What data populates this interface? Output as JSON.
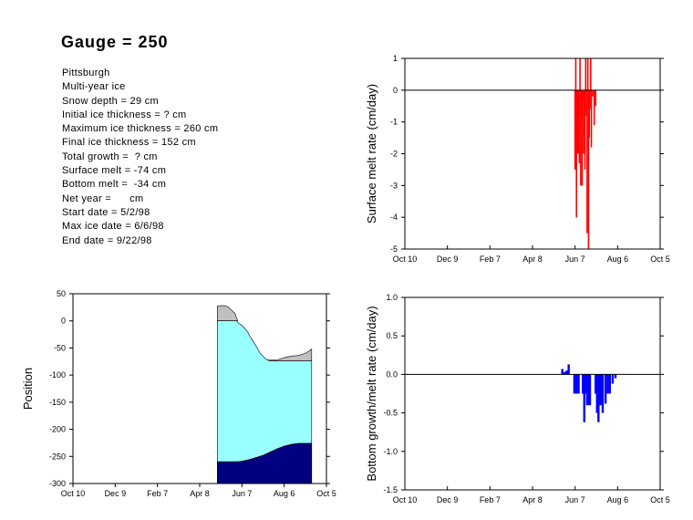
{
  "header": {
    "title": "Gauge = 250",
    "info_lines": [
      "Pittsburgh",
      "Multi-year ice",
      "Snow depth = 29 cm",
      "Initial ice thickness = ? cm",
      "Maximum ice thickness = 260 cm",
      "Final ice thickness = 152 cm",
      "Total growth =  ? cm",
      "Surface melt = -74 cm",
      "Bottom melt =  -34 cm",
      "Net year =      cm",
      "Start date = 5/2/98",
      "Max ice date = 6/6/98",
      "End date = 9/22/98"
    ]
  },
  "chart_data": [
    {
      "id": "surface",
      "type": "bar",
      "title": "",
      "xlabel": "",
      "ylabel": "Surface melt rate (cm/day)",
      "x_ticks": [
        "Oct 10",
        "Dec 9",
        "Feb 7",
        "Apr 8",
        "Jun 7",
        "Aug 6",
        "Oct 5"
      ],
      "y_ticks": [
        "1",
        "0",
        "-1",
        "-2",
        "-3",
        "-4",
        "-5"
      ],
      "xlim_days": [
        0,
        360
      ],
      "ylim": [
        -5,
        1
      ],
      "color": "#ff0000",
      "values": [
        {
          "x": 240,
          "y": -2.5
        },
        {
          "x": 241,
          "y": 1
        },
        {
          "x": 242,
          "y": -4.0
        },
        {
          "x": 243,
          "y": -0.4
        },
        {
          "x": 244,
          "y": -2.0
        },
        {
          "x": 245,
          "y": -1.0
        },
        {
          "x": 246,
          "y": -2.3
        },
        {
          "x": 247,
          "y": 1
        },
        {
          "x": 248,
          "y": -3.0
        },
        {
          "x": 249,
          "y": -0.8
        },
        {
          "x": 250,
          "y": -3.0
        },
        {
          "x": 251,
          "y": -0.3
        },
        {
          "x": 252,
          "y": -2.0
        },
        {
          "x": 253,
          "y": -1.4
        },
        {
          "x": 254,
          "y": -2.5
        },
        {
          "x": 255,
          "y": 1
        },
        {
          "x": 256,
          "y": -0.8
        },
        {
          "x": 257,
          "y": -4.5
        },
        {
          "x": 258,
          "y": 1
        },
        {
          "x": 259,
          "y": -5.0
        },
        {
          "x": 260,
          "y": -1.5
        },
        {
          "x": 261,
          "y": -0.6
        },
        {
          "x": 262,
          "y": 1
        },
        {
          "x": 263,
          "y": -1.8
        },
        {
          "x": 265,
          "y": -0.2
        },
        {
          "x": 267,
          "y": -1.1
        },
        {
          "x": 269,
          "y": -0.5
        }
      ]
    },
    {
      "id": "bottom",
      "type": "bar",
      "title": "",
      "xlabel": "",
      "ylabel": "Bottom growth/melt rate (cm/day)",
      "x_ticks": [
        "Oct 10",
        "Dec 9",
        "Feb 7",
        "Apr 8",
        "Jun 7",
        "Aug 6",
        "Oct 5"
      ],
      "y_ticks": [
        "1.0",
        "0.5",
        "0.0",
        "-0.5",
        "-1.0",
        "-1.5"
      ],
      "xlim_days": [
        0,
        360
      ],
      "ylim": [
        -1.5,
        1.0
      ],
      "color": "#0000ff",
      "values": [
        {
          "x": 222,
          "y": 0.07
        },
        {
          "x": 225,
          "y": 0.03
        },
        {
          "x": 228,
          "y": 0.05
        },
        {
          "x": 231,
          "y": 0.13
        },
        {
          "x": 239,
          "y": -0.25
        },
        {
          "x": 242,
          "y": -0.25
        },
        {
          "x": 245,
          "y": -0.25
        },
        {
          "x": 251,
          "y": -0.25
        },
        {
          "x": 253,
          "y": -0.62
        },
        {
          "x": 255,
          "y": -0.25
        },
        {
          "x": 257,
          "y": -0.4
        },
        {
          "x": 259,
          "y": -0.4
        },
        {
          "x": 261,
          "y": -0.4
        },
        {
          "x": 269,
          "y": -0.25
        },
        {
          "x": 271,
          "y": -0.5
        },
        {
          "x": 273,
          "y": -0.62
        },
        {
          "x": 275,
          "y": -0.4
        },
        {
          "x": 277,
          "y": -0.4
        },
        {
          "x": 279,
          "y": -0.5
        },
        {
          "x": 283,
          "y": -0.38
        },
        {
          "x": 286,
          "y": -0.25
        },
        {
          "x": 289,
          "y": -0.25
        },
        {
          "x": 293,
          "y": -0.12
        },
        {
          "x": 297,
          "y": -0.05
        }
      ]
    },
    {
      "id": "position",
      "type": "area",
      "title": "",
      "xlabel": "",
      "ylabel": "Position",
      "x_ticks": [
        "Oct 10",
        "Dec 9",
        "Feb 7",
        "Apr 8",
        "Jun 7",
        "Aug 6",
        "Oct 5"
      ],
      "y_ticks": [
        "50",
        "0",
        "-50",
        "-100",
        "-150",
        "-200",
        "-250",
        "-300"
      ],
      "xlim_days": [
        0,
        360
      ],
      "ylim": [
        -300,
        50
      ],
      "colors": {
        "snow": "#c0c0c0",
        "ice": "#99ffff",
        "bottom": "#000080",
        "outline": "#000000"
      },
      "snow_top": [
        [
          205,
          27
        ],
        [
          210,
          28
        ],
        [
          215,
          28
        ],
        [
          220,
          26
        ],
        [
          225,
          20
        ],
        [
          230,
          14
        ],
        [
          234,
          0
        ]
      ],
      "ice_top": [
        [
          205,
          0
        ],
        [
          232,
          0
        ],
        [
          236,
          -5
        ],
        [
          240,
          -8
        ],
        [
          244,
          -14
        ],
        [
          248,
          -20
        ],
        [
          252,
          -30
        ],
        [
          256,
          -38
        ],
        [
          260,
          -46
        ],
        [
          264,
          -56
        ],
        [
          268,
          -63
        ],
        [
          272,
          -68
        ],
        [
          276,
          -72
        ],
        [
          280,
          -74
        ],
        [
          300,
          -74
        ],
        [
          320,
          -74
        ],
        [
          339,
          -74
        ]
      ],
      "snow_end_top": [
        [
          276,
          -72
        ],
        [
          290,
          -72
        ],
        [
          300,
          -68
        ],
        [
          310,
          -65
        ],
        [
          320,
          -64
        ],
        [
          330,
          -60
        ],
        [
          336,
          -55
        ],
        [
          339,
          -52
        ]
      ],
      "ice_bottom": [
        [
          205,
          -260
        ],
        [
          235,
          -260
        ],
        [
          240,
          -259
        ],
        [
          250,
          -256
        ],
        [
          260,
          -252
        ],
        [
          270,
          -248
        ],
        [
          280,
          -242
        ],
        [
          290,
          -236
        ],
        [
          300,
          -231
        ],
        [
          310,
          -228
        ],
        [
          320,
          -226
        ],
        [
          339,
          -226
        ]
      ],
      "x_start": 205,
      "x_end": 339
    }
  ]
}
